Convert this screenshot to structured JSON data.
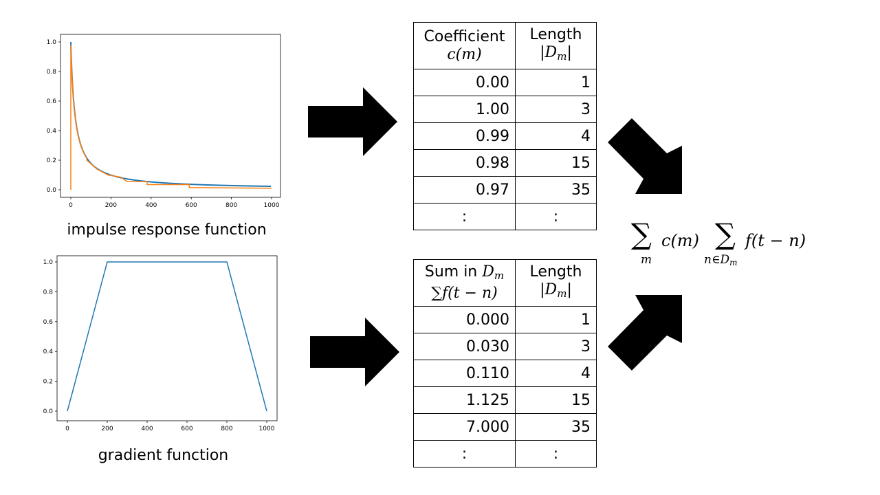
{
  "charts": {
    "impulse": {
      "type": "line",
      "xlim": [
        0,
        1000
      ],
      "ylim": [
        0,
        1.0
      ],
      "x_ticks": [
        "0",
        "200",
        "400",
        "600",
        "800",
        "1000"
      ],
      "y_ticks": [
        "0.0",
        "0.2",
        "0.4",
        "0.6",
        "0.8",
        "1.0"
      ],
      "series_colors": [
        "#1f77b4",
        "#ff7f0e"
      ],
      "caption": "impulse response function"
    },
    "gradient": {
      "type": "line",
      "xlim": [
        0,
        1000
      ],
      "ylim": [
        0,
        1.0
      ],
      "x_ticks": [
        "0",
        "200",
        "400",
        "600",
        "800",
        "1000"
      ],
      "y_ticks": [
        "0.0",
        "0.2",
        "0.4",
        "0.6",
        "0.8",
        "1.0"
      ],
      "series_colors": [
        "#1f77b4"
      ],
      "points": [
        [
          0,
          0
        ],
        [
          200,
          1.0
        ],
        [
          800,
          1.0
        ],
        [
          1000,
          0
        ]
      ],
      "caption": "gradient function"
    }
  },
  "table1": {
    "header_col1_line1": "Coefficient",
    "header_col1_line2": "c(m)",
    "header_col2_line1": "Length",
    "header_col2_line2": "|D",
    "header_col2_sub": "m",
    "header_col2_end": "|",
    "rows": [
      [
        "0.00",
        "1"
      ],
      [
        "1.00",
        "3"
      ],
      [
        "0.99",
        "4"
      ],
      [
        "0.98",
        "15"
      ],
      [
        "0.97",
        "35"
      ],
      [
        ":",
        ":"
      ]
    ]
  },
  "table2": {
    "header_col1_line1": "Sum in ",
    "header_col1_D": "D",
    "header_col1_sub": "m",
    "header_col1_line2": "∑f(t − n)",
    "header_col2_line1": "Length",
    "header_col2_line2": "|D",
    "header_col2_sub": "m",
    "header_col2_end": "|",
    "rows": [
      [
        "0.000",
        "1"
      ],
      [
        "0.030",
        "3"
      ],
      [
        "0.110",
        "4"
      ],
      [
        "1.125",
        "15"
      ],
      [
        "7.000",
        "35"
      ],
      [
        ":",
        ":"
      ]
    ]
  },
  "formula": {
    "sum1": "∑",
    "sum1_index": "m",
    "term1": "c(m)",
    "sum2": "∑",
    "sum2_index": "n∈D",
    "sum2_index_sub": "m",
    "term2": "f(t − n)"
  }
}
